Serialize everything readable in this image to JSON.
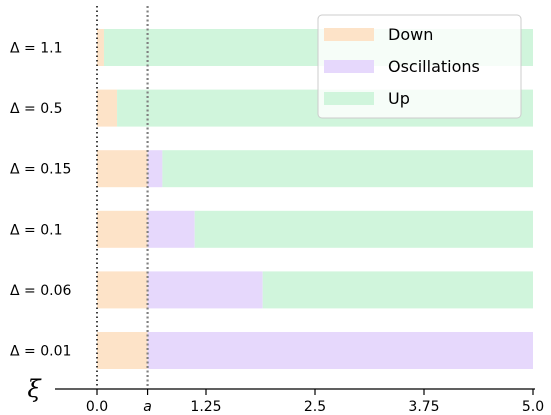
{
  "chart_data": {
    "type": "bar",
    "orientation": "horizontal",
    "stacked": true,
    "categories": [
      "Δ = 1.1",
      "Δ = 0.5",
      "Δ = 0.15",
      "Δ = 0.1",
      "Δ = 0.06",
      "Δ = 0.01"
    ],
    "series": [
      {
        "name": "Down",
        "color": "#fde3c8",
        "values": [
          0.08,
          0.23,
          0.58,
          0.58,
          0.58,
          0.58
        ]
      },
      {
        "name": "Oscillations",
        "color": "#e6d8fc",
        "values": [
          0.0,
          0.0,
          0.17,
          0.54,
          1.32,
          4.42
        ]
      },
      {
        "name": "Up",
        "color": "#d0f5dc",
        "values": [
          4.92,
          4.77,
          4.25,
          3.88,
          3.1,
          0.0
        ]
      }
    ],
    "xlabel": "ξ",
    "xlim": [
      0,
      5
    ],
    "xticks": [
      {
        "label": "0.0",
        "value": 0.0
      },
      {
        "label": "a",
        "value": 0.58
      },
      {
        "label": "1.25",
        "value": 1.25
      },
      {
        "label": "2.5",
        "value": 2.5
      },
      {
        "label": "3.75",
        "value": 3.75
      },
      {
        "label": "5.0",
        "value": 5.0
      }
    ],
    "reference_lines": [
      {
        "value": 0.0,
        "style": "dotted",
        "color": "#000000"
      },
      {
        "value": 0.58,
        "style": "dotted",
        "color": "#808080"
      }
    ],
    "legend": {
      "placement": "top-right"
    },
    "grid": false
  }
}
